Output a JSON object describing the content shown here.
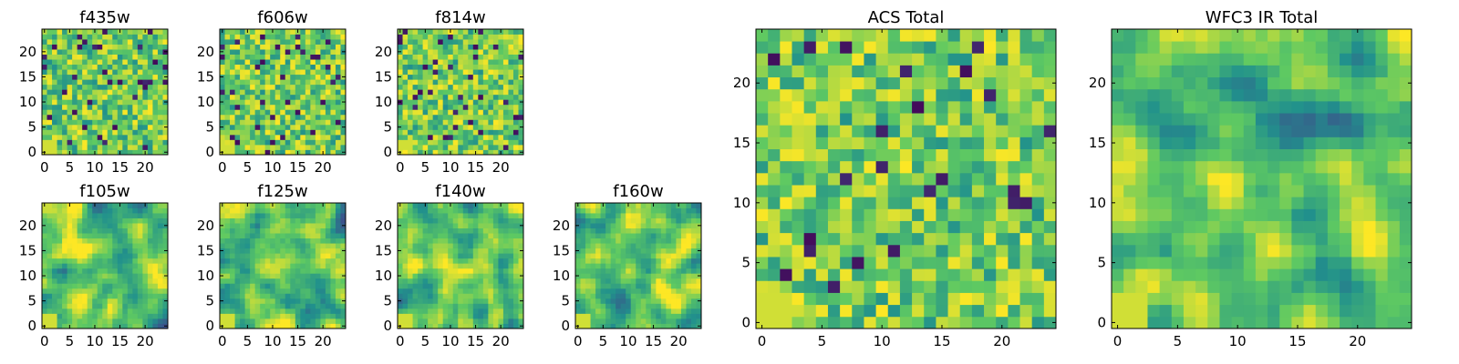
{
  "chart_data": [
    {
      "type": "heatmap",
      "title": "f435w",
      "xlim": [
        0,
        24
      ],
      "ylim": [
        0,
        24
      ],
      "xticks": [
        0,
        5,
        10,
        15,
        20
      ],
      "yticks": [
        0,
        5,
        10,
        15,
        20
      ],
      "colormap": "viridis",
      "style": "noise",
      "seed": 11
    },
    {
      "type": "heatmap",
      "title": "f606w",
      "xlim": [
        0,
        24
      ],
      "ylim": [
        0,
        24
      ],
      "xticks": [
        0,
        5,
        10,
        15,
        20
      ],
      "yticks": [
        0,
        5,
        10,
        15,
        20
      ],
      "colormap": "viridis",
      "style": "noise",
      "seed": 23
    },
    {
      "type": "heatmap",
      "title": "f814w",
      "xlim": [
        0,
        24
      ],
      "ylim": [
        0,
        24
      ],
      "xticks": [
        0,
        5,
        10,
        15,
        20
      ],
      "yticks": [
        0,
        5,
        10,
        15,
        20
      ],
      "colormap": "viridis",
      "style": "noise",
      "seed": 37
    },
    {
      "type": "heatmap",
      "title": "f105w",
      "xlim": [
        0,
        24
      ],
      "ylim": [
        0,
        24
      ],
      "xticks": [
        0,
        5,
        10,
        15,
        20
      ],
      "yticks": [
        0,
        5,
        10,
        15,
        20
      ],
      "colormap": "viridis",
      "style": "smooth",
      "seed": 41
    },
    {
      "type": "heatmap",
      "title": "f125w",
      "xlim": [
        0,
        24
      ],
      "ylim": [
        0,
        24
      ],
      "xticks": [
        0,
        5,
        10,
        15,
        20
      ],
      "yticks": [
        0,
        5,
        10,
        15,
        20
      ],
      "colormap": "viridis",
      "style": "smooth",
      "seed": 53
    },
    {
      "type": "heatmap",
      "title": "f140w",
      "xlim": [
        0,
        24
      ],
      "ylim": [
        0,
        24
      ],
      "xticks": [
        0,
        5,
        10,
        15,
        20
      ],
      "yticks": [
        0,
        5,
        10,
        15,
        20
      ],
      "colormap": "viridis",
      "style": "smooth",
      "seed": 67
    },
    {
      "type": "heatmap",
      "title": "f160w",
      "xlim": [
        0,
        24
      ],
      "ylim": [
        0,
        24
      ],
      "xticks": [
        0,
        5,
        10,
        15,
        20
      ],
      "yticks": [
        0,
        5,
        10,
        15,
        20
      ],
      "colormap": "viridis",
      "style": "smooth",
      "seed": 79
    },
    {
      "type": "heatmap",
      "title": "ACS Total",
      "xlim": [
        0,
        24
      ],
      "ylim": [
        0,
        24
      ],
      "xticks": [
        0,
        5,
        10,
        15,
        20
      ],
      "yticks": [
        0,
        5,
        10,
        15,
        20
      ],
      "colormap": "viridis",
      "style": "noise",
      "seed": 83
    },
    {
      "type": "heatmap",
      "title": "WFC3 IR Total",
      "xlim": [
        0,
        24
      ],
      "ylim": [
        0,
        24
      ],
      "xticks": [
        0,
        5,
        10,
        15,
        20
      ],
      "yticks": [
        0,
        5,
        10,
        15,
        20
      ],
      "colormap": "viridis",
      "style": "smooth",
      "seed": 97
    }
  ]
}
